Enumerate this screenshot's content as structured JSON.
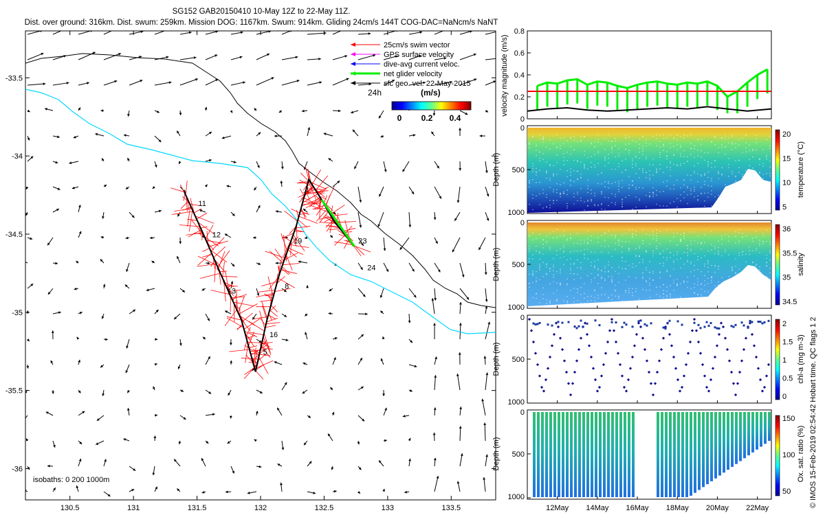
{
  "header": {
    "line1": "SG152 GAB20150410 10-May 12Z to 22-May 11Z.",
    "line2": "Dist. over ground: 316km. Dist. swum: 259km. Mission DOG: 1167km. Swum: 914km. Gliding 24cm/s 144T COG-DAC=NaNcm/s NaNT"
  },
  "credit": "© IMOS 15-Feb-2019 02:54:42 Hobart time. QC flags 1  2",
  "map": {
    "legend": [
      {
        "label": "25cm/s swim vector",
        "color": "#ff0000"
      },
      {
        "label": "GPS surface velocity",
        "color": "#ff00ff"
      },
      {
        "label": "dive-avg current veloc.",
        "color": "#0000ff"
      },
      {
        "label": "net glider velocity",
        "color": "#00ee00"
      },
      {
        "label": "sfc geo. vel. 22-May-2015",
        "color": "#000000"
      }
    ],
    "scale_label": "24h",
    "colorbar": {
      "title": "(m/s)",
      "ticks": [
        "0",
        "0.2",
        "0.4"
      ]
    },
    "isobaths_label": "isobaths: 0   200  1000m",
    "colors": {
      "coast": "#000000",
      "isobath": "#00d8ff",
      "track": "#ff0000",
      "path": "#000000",
      "net": "#00ee00"
    }
  },
  "chart_data": [
    {
      "type": "scatter",
      "name": "map",
      "xlim": [
        130.15,
        133.85
      ],
      "ylim": [
        -36.2,
        -33.2
      ],
      "x_ticks": [
        "130.5",
        "131",
        "131.5",
        "132",
        "132.5",
        "133",
        "133.5"
      ],
      "y_ticks": [
        "-33.5",
        "-34",
        "-34.5",
        "-35",
        "-35.5",
        "-36"
      ],
      "track": [
        [
          131.4,
          -34.23
        ],
        [
          131.55,
          -34.5
        ],
        [
          131.7,
          -34.78
        ],
        [
          131.85,
          -35.05
        ],
        [
          131.96,
          -35.38
        ],
        [
          132.05,
          -35.05
        ],
        [
          132.15,
          -34.75
        ],
        [
          132.28,
          -34.45
        ],
        [
          132.38,
          -34.15
        ],
        [
          132.48,
          -34.28
        ],
        [
          132.58,
          -34.42
        ],
        [
          132.74,
          -34.58
        ]
      ],
      "day_labels": [
        {
          "text": "11",
          "x": 131.51,
          "y": -34.32
        },
        {
          "text": "12",
          "x": 131.62,
          "y": -34.52
        },
        {
          "text": "13",
          "x": 131.74,
          "y": -34.88
        },
        {
          "text": "5",
          "x": 132.02,
          "y": -35.27
        },
        {
          "text": "16",
          "x": 132.07,
          "y": -35.16
        },
        {
          "text": "8",
          "x": 132.19,
          "y": -34.85
        },
        {
          "text": "19",
          "x": 132.26,
          "y": -34.56
        },
        {
          "text": "23",
          "x": 132.77,
          "y": -34.56
        },
        {
          "text": "24",
          "x": 132.84,
          "y": -34.73
        }
      ]
    },
    {
      "type": "line",
      "name": "velocity",
      "ylabel": "velocity magnitude (m/s)",
      "ylim": [
        0,
        0.8
      ],
      "y_ticks": [
        "0",
        "0.2",
        "0.4",
        "0.6",
        "0.8"
      ],
      "series": [
        {
          "color": "#00ee00",
          "x": [
            11.0,
            11.5,
            12.0,
            12.5,
            13.0,
            13.5,
            14.0,
            14.5,
            15.0,
            15.5,
            16.0,
            16.5,
            17.0,
            17.5,
            18.0,
            18.5,
            19.0,
            19.5,
            20.0,
            20.5,
            21.0,
            21.5,
            22.0,
            22.5
          ],
          "y": [
            0.3,
            0.33,
            0.32,
            0.35,
            0.36,
            0.31,
            0.34,
            0.33,
            0.3,
            0.28,
            0.31,
            0.33,
            0.34,
            0.32,
            0.31,
            0.33,
            0.32,
            0.34,
            0.3,
            0.2,
            0.25,
            0.33,
            0.4,
            0.45
          ]
        },
        {
          "color": "#ff0000",
          "x": [
            10.5,
            22.7
          ],
          "y": [
            0.25,
            0.25
          ]
        },
        {
          "color": "#000000",
          "x": [
            10.5,
            11.5,
            12.5,
            13.5,
            14.5,
            15.5,
            16.5,
            17.5,
            18.5,
            19.5,
            20.5,
            21.5,
            22.7
          ],
          "y": [
            0.07,
            0.09,
            0.1,
            0.08,
            0.07,
            0.08,
            0.09,
            0.1,
            0.09,
            0.11,
            0.09,
            0.07,
            0.09
          ]
        }
      ]
    },
    {
      "type": "heatmap",
      "name": "temperature",
      "ylabel": "Depth (m)",
      "colorbar_label": "temperature (°C)",
      "colorbar_ticks": [
        "5",
        "10",
        "15",
        "20"
      ],
      "y_ticks": [
        "0",
        "500",
        "1000"
      ]
    },
    {
      "type": "heatmap",
      "name": "salinity",
      "ylabel": "Depth (m)",
      "colorbar_label": "salinity",
      "colorbar_ticks": [
        "34.5",
        "35",
        "35.5",
        "36"
      ],
      "y_ticks": [
        "0",
        "500",
        "1000"
      ]
    },
    {
      "type": "scatter",
      "name": "chl",
      "ylabel": "Depth (m)",
      "colorbar_label": "chl-a (mg m-3)",
      "colorbar_ticks": [
        "0",
        "0.5",
        "1",
        "1.5",
        "2"
      ],
      "y_ticks": [
        "0",
        "500",
        "1000"
      ]
    },
    {
      "type": "scatter",
      "name": "oxygen",
      "ylabel": "Depth (m)",
      "colorbar_label": "Ox. sat. ratio (%)",
      "colorbar_ticks": [
        "50",
        "100",
        "150"
      ],
      "y_ticks": [
        "0",
        "500",
        "1000"
      ],
      "x_ticks": [
        "12May",
        "14May",
        "16May",
        "18May",
        "20May",
        "22May"
      ]
    }
  ]
}
